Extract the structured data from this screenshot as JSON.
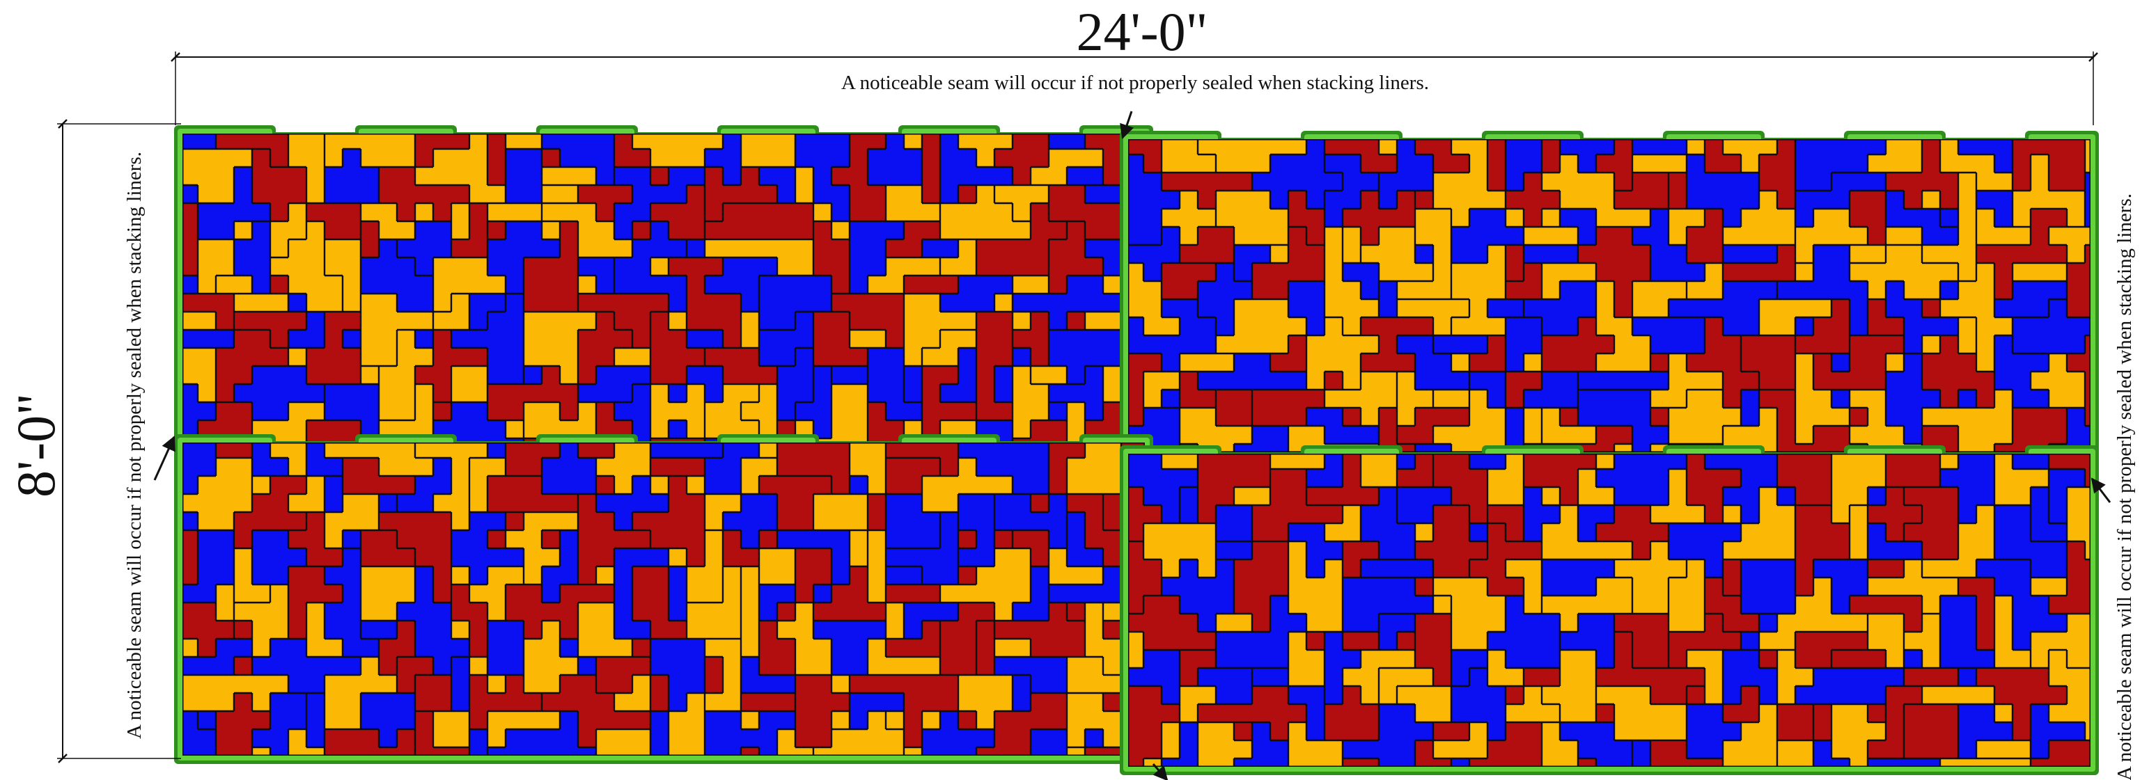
{
  "dimensions": {
    "width_label": "24'-0\"",
    "height_label": "8'-0\""
  },
  "notes": {
    "top": "A noticeable seam will occur if not properly sealed when stacking liners.",
    "left": "A noticeable seam will occur if not properly sealed when stacking liners.",
    "right": "A noticeable seam will occur if not properly sealed when stacking liners."
  },
  "panels": {
    "grid": {
      "rows": 2,
      "columns": 2
    }
  },
  "colors": {
    "red": "#b20e10",
    "blue": "#0a10f2",
    "yellow": "#fbb906",
    "outline_outer": "#2f8f1c",
    "outline_inner": "#63d23d",
    "piece_stroke": "#0b0b0b",
    "dimension_line": "#111111"
  }
}
